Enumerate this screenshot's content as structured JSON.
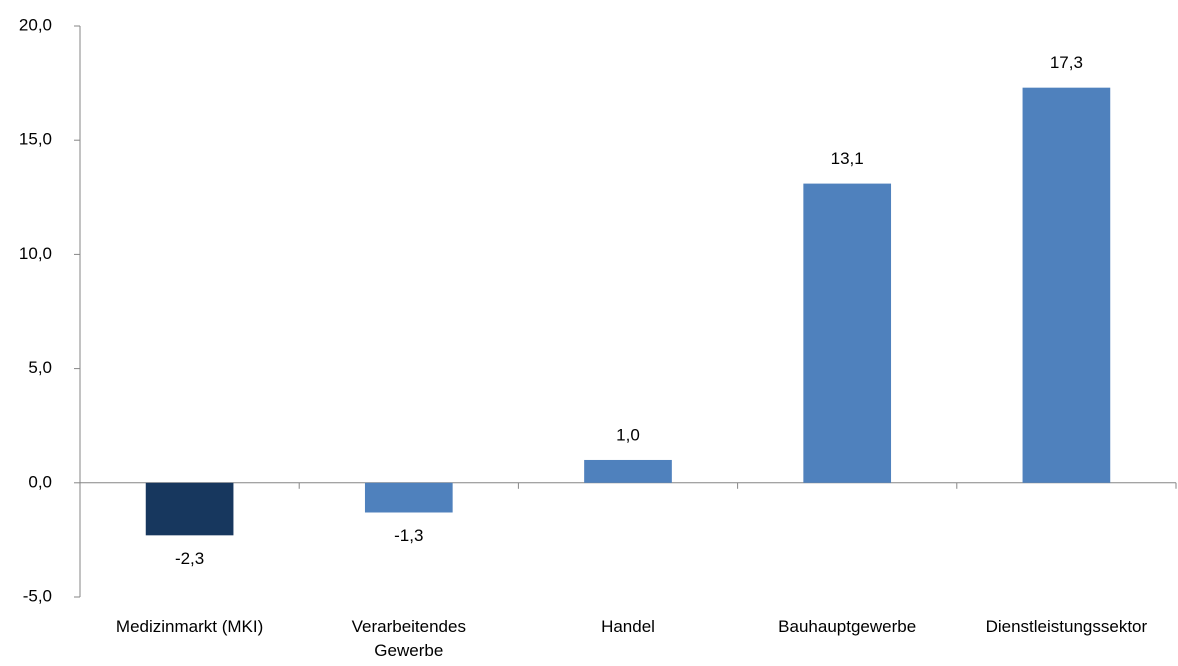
{
  "chart_data": {
    "type": "bar",
    "categories": [
      "Medizinmarkt (MKI)",
      "Verarbeitendes Gewerbe",
      "Handel",
      "Bauhauptgewerbe",
      "Dienstleistungssektor"
    ],
    "values": [
      -2.3,
      -1.3,
      1.0,
      13.1,
      17.3
    ],
    "value_labels": [
      "-2,3",
      "-1,3",
      "1,0",
      "13,1",
      "17,3"
    ],
    "colors": [
      "#17375e",
      "#4f81bd",
      "#4f81bd",
      "#4f81bd",
      "#4f81bd"
    ],
    "ylim": [
      -5,
      20
    ],
    "yticks": [
      {
        "value": -5,
        "label": "-5,0"
      },
      {
        "value": 0,
        "label": "0,0"
      },
      {
        "value": 5,
        "label": "5,0"
      },
      {
        "value": 10,
        "label": "10,0"
      },
      {
        "value": 15,
        "label": "15,0"
      },
      {
        "value": 20,
        "label": "20,0"
      }
    ],
    "grid": false
  }
}
